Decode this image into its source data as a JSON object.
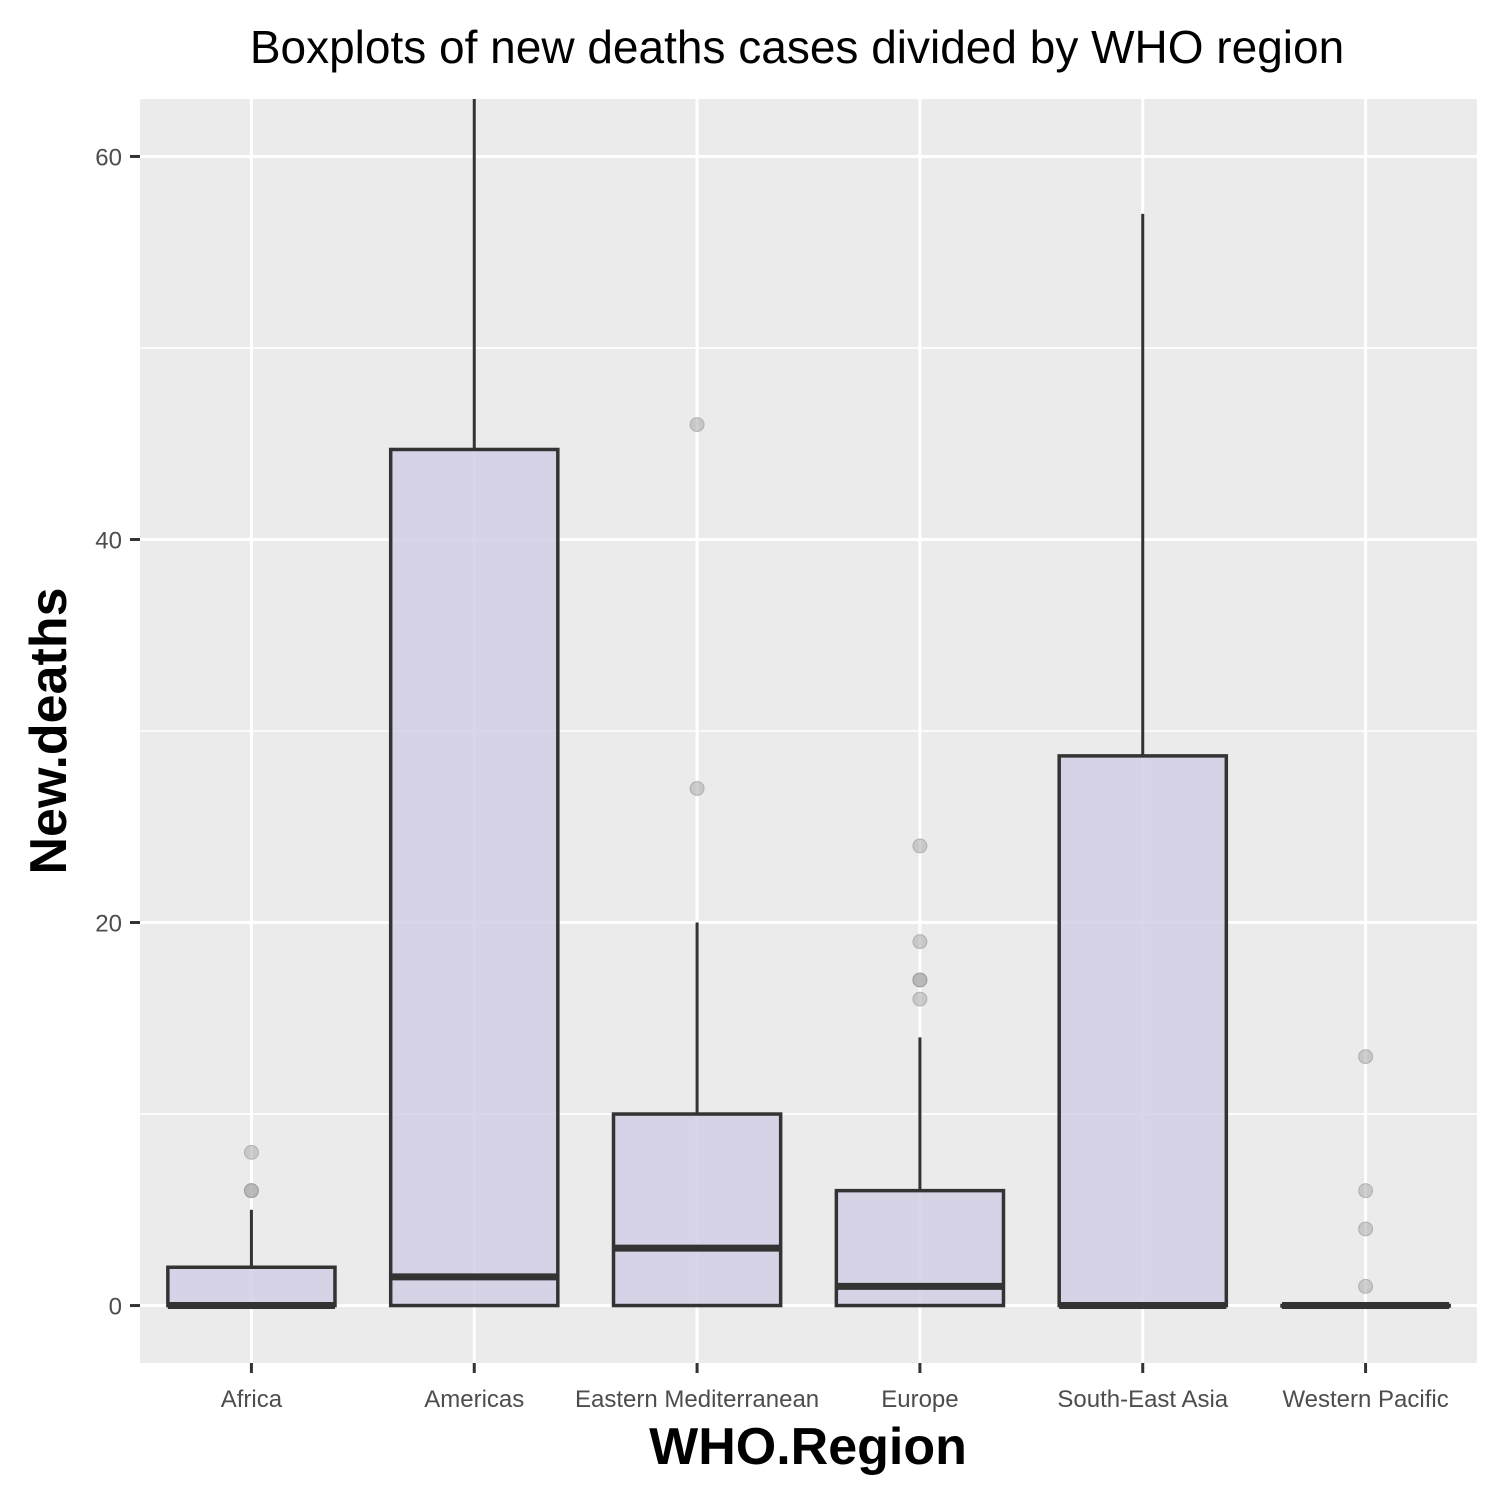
{
  "chart_data": {
    "type": "boxplot",
    "title": "Boxplots of new deaths cases divided by WHO region",
    "xlabel": "WHO.Region",
    "ylabel": "New.deaths",
    "categories": [
      "Africa",
      "Americas",
      "Eastern Mediterranean",
      "Europe",
      "South-East Asia",
      "Western Pacific"
    ],
    "ylim": [
      -3,
      63
    ],
    "yticks": [
      0,
      20,
      40,
      60
    ],
    "grid": true,
    "series": [
      {
        "category": "Africa",
        "whisker_low": 0,
        "q1": 0,
        "median": 0,
        "q3": 2,
        "whisker_high": 5,
        "outliers": [
          6,
          6,
          8
        ]
      },
      {
        "category": "Americas",
        "whisker_low": 0,
        "q1": 0,
        "median": 1.5,
        "q3": 44.7,
        "whisker_high": 63,
        "outliers": []
      },
      {
        "category": "Eastern Mediterranean",
        "whisker_low": 0,
        "q1": 0,
        "median": 3,
        "q3": 10,
        "whisker_high": 20,
        "outliers": [
          27,
          46
        ]
      },
      {
        "category": "Europe",
        "whisker_low": 0,
        "q1": 0,
        "median": 1,
        "q3": 6,
        "whisker_high": 14,
        "outliers": [
          16,
          17,
          17,
          19,
          24
        ]
      },
      {
        "category": "South-East Asia",
        "whisker_low": 0,
        "q1": 0,
        "median": 0,
        "q3": 28.7,
        "whisker_high": 57,
        "outliers": []
      },
      {
        "category": "Western Pacific",
        "whisker_low": 0,
        "q1": 0,
        "median": 0,
        "q3": 0,
        "whisker_high": 0,
        "outliers": [
          1,
          4,
          6,
          13
        ]
      }
    ],
    "colors": {
      "panel": "#ebebeb",
      "grid": "#ffffff",
      "box_fill": "#d3cfe6",
      "box_stroke": "#333333",
      "outlier": "#a9a9a9"
    }
  }
}
